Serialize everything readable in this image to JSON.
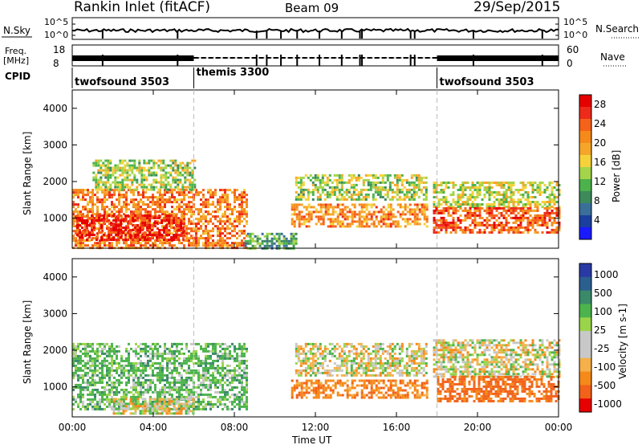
{
  "header": {
    "station": "Rankin Inlet (fitACF)",
    "beam": "Beam 09",
    "date": "29/Sep/2015"
  },
  "top_strips": {
    "nsky_label": "N.Sky",
    "nsky_ticks": [
      "10^5",
      "10^0"
    ],
    "nsearch_label": "N.Search",
    "freq_label_1": "Freq.",
    "freq_label_2": "[MHz]",
    "freq_ticks": [
      "8",
      "18"
    ],
    "nave_label": "Nave",
    "nave_ticks": [
      "60",
      "0"
    ],
    "cpid_label": "CPID"
  },
  "cpid_segments": [
    {
      "label": "twofsound 3503",
      "start_hour": 0
    },
    {
      "label": "themis 3300",
      "start_hour": 6
    },
    {
      "label": "twofsound 3503",
      "start_hour": 18
    }
  ],
  "colors": {
    "power": [
      "#1a1aff",
      "#1a3f9f",
      "#3a6f9a",
      "#3d8a5a",
      "#4cb24c",
      "#a4d44a",
      "#f5d23a",
      "#f5a62a",
      "#f58a1a",
      "#f5621a",
      "#ee2a1a",
      "#e60000"
    ],
    "velocity": [
      "#2a3aa5",
      "#2a5f90",
      "#3a8a6a",
      "#4cb44c",
      "#9ad44a",
      "#c8c8c8",
      "#c8c8c8",
      "#f5b04a",
      "#f58a1a",
      "#f2621a",
      "#e60000"
    ]
  },
  "chart_data": [
    {
      "type": "heatmap",
      "quantity": "Power",
      "ylabel": "Slant Range [km]",
      "colorbar_label": "Power [dB]",
      "colorbar_ticks": [
        4,
        8,
        12,
        16,
        20,
        24,
        28
      ],
      "colorbar_range": [
        0,
        30
      ],
      "ylim": [
        180,
        4500
      ],
      "yticks": [
        1000,
        2000,
        3000,
        4000
      ],
      "xlim_hours": [
        0,
        24
      ],
      "xtick_labels": [
        "00:00",
        "04:00",
        "08:00",
        "12:00",
        "16:00",
        "20:00",
        "00:00"
      ],
      "regions": [
        {
          "t": [
            0,
            8.6
          ],
          "r": [
            200,
            1800
          ],
          "value": 22
        },
        {
          "t": [
            0.2,
            5.5
          ],
          "r": [
            400,
            1100
          ],
          "value": 27
        },
        {
          "t": [
            1,
            6
          ],
          "r": [
            1800,
            2600
          ],
          "value": 14
        },
        {
          "t": [
            8.5,
            11
          ],
          "r": [
            200,
            600
          ],
          "value": 10
        },
        {
          "t": [
            10.8,
            17.5
          ],
          "r": [
            800,
            1400
          ],
          "value": 21
        },
        {
          "t": [
            11,
            17.5
          ],
          "r": [
            1500,
            2200
          ],
          "value": 14
        },
        {
          "t": [
            17.8,
            24
          ],
          "r": [
            1300,
            2000
          ],
          "value": 15
        },
        {
          "t": [
            17.8,
            24
          ],
          "r": [
            600,
            1300
          ],
          "value": 24
        }
      ]
    },
    {
      "type": "heatmap",
      "quantity": "Velocity",
      "ylabel": "Slant Range [km]",
      "colorbar_label": "Velocity [m s-1]",
      "colorbar_ticks": [
        1000,
        500,
        100,
        25,
        -25,
        -100,
        -500,
        -1000
      ],
      "ylim": [
        180,
        4500
      ],
      "yticks": [
        1000,
        2000,
        3000,
        4000
      ],
      "xlim_hours": [
        0,
        24
      ],
      "xtick_labels": [
        "00:00",
        "04:00",
        "08:00",
        "12:00",
        "16:00",
        "20:00",
        "00:00"
      ],
      "xlabel": "Time UT",
      "regions": [
        {
          "t": [
            0,
            8.6
          ],
          "r": [
            400,
            2200
          ],
          "value": 150
        },
        {
          "t": [
            2,
            6
          ],
          "r": [
            300,
            700
          ],
          "value": 0
        },
        {
          "t": [
            10.8,
            17.5
          ],
          "r": [
            700,
            1200
          ],
          "value": -200
        },
        {
          "t": [
            11,
            17.5
          ],
          "r": [
            1300,
            2200
          ],
          "value": 0
        },
        {
          "t": [
            17.8,
            24
          ],
          "r": [
            1300,
            2300
          ],
          "value": 0
        },
        {
          "t": [
            18,
            24
          ],
          "r": [
            600,
            1300
          ],
          "value": -300
        }
      ]
    }
  ]
}
